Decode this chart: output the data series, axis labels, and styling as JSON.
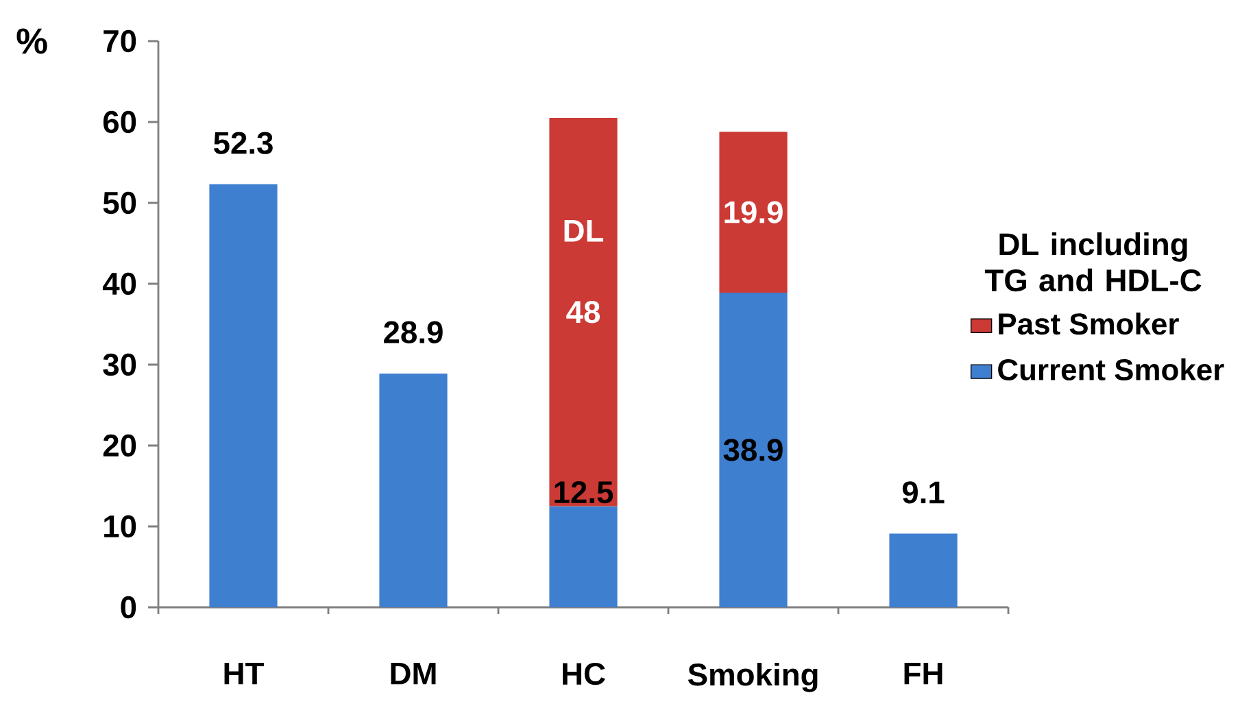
{
  "chart_data": {
    "type": "bar",
    "stacked": true,
    "categories": [
      "HT",
      "DM",
      "HC",
      "Smoking",
      "FH"
    ],
    "series": [
      {
        "name": "Current Smoker",
        "color": "#3f7fd0",
        "values": [
          52.3,
          28.9,
          12.5,
          38.9,
          9.1
        ]
      },
      {
        "name": "Past Smoker",
        "color": "#cc3a36",
        "values": [
          null,
          null,
          48,
          19.9,
          null
        ]
      }
    ],
    "ylabel": "%",
    "ylim": [
      0,
      70
    ],
    "yticks": [
      0,
      10,
      20,
      30,
      40,
      50,
      60,
      70
    ],
    "legend": "right",
    "legend_title": "DL including TG and HDL-C",
    "data_labels": true,
    "grid": false,
    "annotations": [
      "DL"
    ]
  }
}
